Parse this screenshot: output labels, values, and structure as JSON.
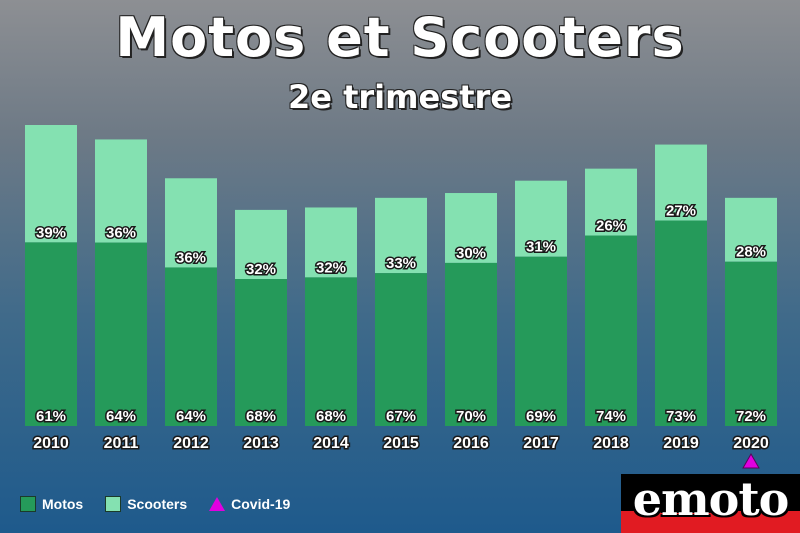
{
  "chart_data": {
    "type": "bar",
    "stacked": true,
    "title": "Motos et Scooters",
    "subtitle": "2e trimestre",
    "categories": [
      "2010",
      "2011",
      "2012",
      "2013",
      "2014",
      "2015",
      "2016",
      "2017",
      "2018",
      "2019",
      "2020"
    ],
    "series": [
      {
        "name": "Motos",
        "color": "#259a5a",
        "values": [
          61,
          64,
          64,
          68,
          68,
          67,
          70,
          69,
          74,
          73,
          72
        ]
      },
      {
        "name": "Scooters",
        "color": "#84e1b1",
        "values": [
          39,
          36,
          36,
          32,
          32,
          33,
          30,
          31,
          26,
          27,
          28
        ]
      }
    ],
    "relative_totals": [
      100,
      95.2,
      82.3,
      71.8,
      72.6,
      75.8,
      77.4,
      81.5,
      85.5,
      93.5,
      75.8
    ],
    "annotations": [
      {
        "category": "2020",
        "marker": "triangle",
        "color": "#e000e0",
        "label": "Covid-19"
      }
    ],
    "legend_position": "bottom-left",
    "grid": false,
    "yaxis_visible": false
  },
  "legend": {
    "motos": "Motos",
    "scooters": "Scooters",
    "covid": "Covid-19"
  },
  "logo": {
    "text": "emoto"
  }
}
